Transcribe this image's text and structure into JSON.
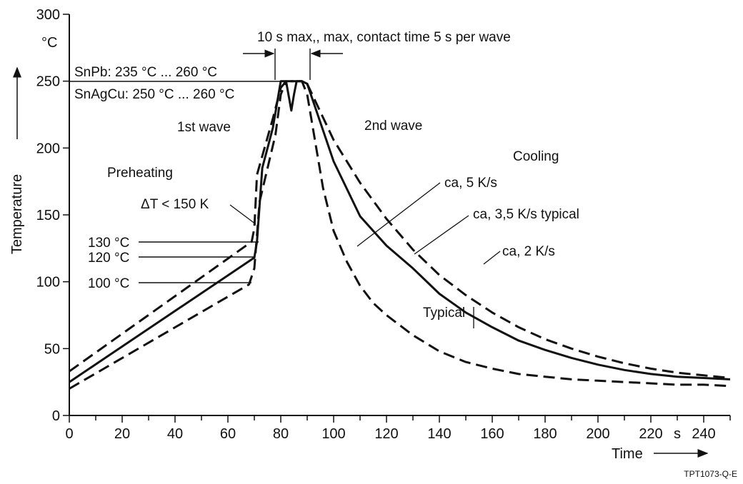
{
  "chart_data": {
    "type": "line",
    "xlabel": "Time",
    "x_unit": "s",
    "ylabel": "Temperature",
    "y_unit": "°C",
    "xlim": [
      0,
      250
    ],
    "ylim": [
      0,
      300
    ],
    "x_ticks": [
      0,
      20,
      40,
      60,
      80,
      100,
      120,
      140,
      160,
      180,
      200,
      220,
      240
    ],
    "y_ticks": [
      0,
      50,
      100,
      150,
      200,
      250,
      300
    ],
    "series": [
      {
        "style": "dashed",
        "x": [
          0,
          69,
          70,
          71,
          77,
          80,
          82,
          85,
          88,
          90,
          100,
          110,
          120,
          130,
          140,
          150,
          160,
          170,
          180,
          190,
          200,
          210,
          220,
          230,
          240,
          250
        ],
        "y": [
          33,
          130,
          140,
          180,
          222,
          245,
          250,
          250,
          250,
          248,
          206,
          174,
          147,
          124,
          105,
          90,
          77,
          66,
          57,
          50,
          44,
          39,
          35,
          32,
          30,
          28
        ]
      },
      {
        "style": "solid",
        "x": [
          0,
          70,
          71,
          73,
          77,
          80,
          82,
          84,
          85,
          86,
          88,
          90,
          100,
          110,
          120,
          130,
          140,
          150,
          160,
          170,
          180,
          190,
          200,
          210,
          220,
          230,
          240,
          250
        ],
        "y": [
          25,
          118,
          130,
          185,
          215,
          250,
          250,
          228,
          240,
          250,
          250,
          248,
          190,
          149,
          127,
          110,
          91,
          77,
          66,
          56,
          49,
          43,
          38,
          34,
          31,
          29,
          28,
          27
        ],
        "label": "ca, 3,5 K/s typical"
      },
      {
        "style": "dashed",
        "x": [
          0,
          68,
          70,
          72,
          78,
          80,
          82,
          86,
          88,
          90,
          93,
          96,
          100,
          105,
          110,
          115,
          120,
          130,
          140,
          150,
          160,
          170,
          180,
          190,
          200,
          210,
          220,
          230,
          240,
          250
        ],
        "y": [
          20,
          98,
          110,
          160,
          210,
          240,
          250,
          250,
          250,
          240,
          205,
          170,
          138,
          115,
          97,
          84,
          75,
          60,
          48,
          40,
          35,
          31,
          29,
          27,
          26,
          25,
          24,
          23,
          23,
          22
        ],
        "label": "ca, 5 K/s"
      }
    ],
    "reference_levels": [
      {
        "y": 250,
        "label_top": "SnPb: 235 °C ... 260 °C",
        "label_bottom": "SnAgCu: 250 °C ... 260 °C"
      },
      {
        "y": 130,
        "label": "130 °C"
      },
      {
        "y": 120,
        "label": "120 °C"
      },
      {
        "y": 100,
        "label": "100 °C"
      }
    ],
    "annotations": {
      "time_window": "10 s max,, max, contact time 5 s per wave",
      "first_wave": "1st wave",
      "second_wave": "2nd wave",
      "cooling": "Cooling",
      "preheating": "Preheating",
      "delta_t": "ΔT < 150 K",
      "rate_5": "ca, 5 K/s",
      "rate_35": "ca, 3,5 K/s typical",
      "rate_2": "ca, 2 K/s",
      "typical": "Typical"
    },
    "y_unit_label": "°C",
    "x_unit_label": "s",
    "figure_code": "TPT1073-Q-E"
  }
}
